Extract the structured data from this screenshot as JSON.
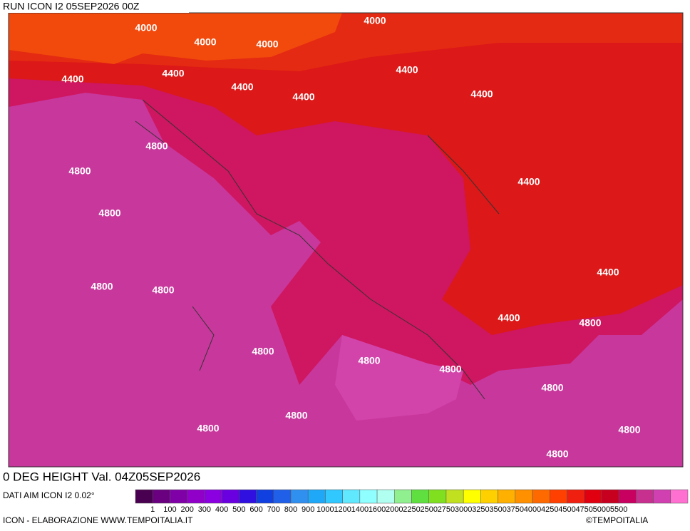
{
  "header": {
    "run": "RUN ICON I2 05SEP2026 00Z"
  },
  "map": {
    "contour_labels": [
      "4000",
      "4000",
      "4000",
      "4000",
      "4400",
      "4400",
      "4400",
      "4400",
      "4400",
      "4400",
      "4400",
      "4400",
      "4400",
      "4800",
      "4800",
      "4800",
      "4800",
      "4800",
      "4800",
      "4800",
      "4800",
      "4800",
      "4800",
      "4800",
      "4800",
      "4800",
      "4800"
    ]
  },
  "footer": {
    "title": "0 DEG HEIGHT Val. 04Z05SEP2026",
    "source": "DATI AIM ICON I2 0.02°",
    "credit": "ICON - ELABORAZIONE WWW.TEMPOITALIA.IT",
    "brand": "©TEMPOITALIA"
  },
  "legend": {
    "colors": [
      "#4a0050",
      "#6a0080",
      "#8000a8",
      "#9000c8",
      "#8a00e0",
      "#6a00e0",
      "#3010e0",
      "#1040e0",
      "#2060e8",
      "#3090f0",
      "#20a8f8",
      "#30c8ff",
      "#60e8ff",
      "#90ffff",
      "#b0fff0",
      "#90f090",
      "#60e040",
      "#80e020",
      "#c0e020",
      "#ffff00",
      "#ffd000",
      "#ffb000",
      "#ff9000",
      "#ff6a00",
      "#ff4000",
      "#f02010",
      "#e00010",
      "#c80020",
      "#c80060",
      "#c83090",
      "#d040b0",
      "#ff70d0"
    ],
    "labels": [
      "1",
      "100",
      "200",
      "300",
      "400",
      "500",
      "600",
      "700",
      "800",
      "900",
      "1000",
      "1200",
      "1400",
      "1600",
      "2000",
      "2250",
      "2500",
      "2750",
      "3000",
      "3250",
      "3500",
      "3750",
      "4000",
      "4250",
      "4500",
      "4750",
      "5000",
      "5500"
    ]
  }
}
